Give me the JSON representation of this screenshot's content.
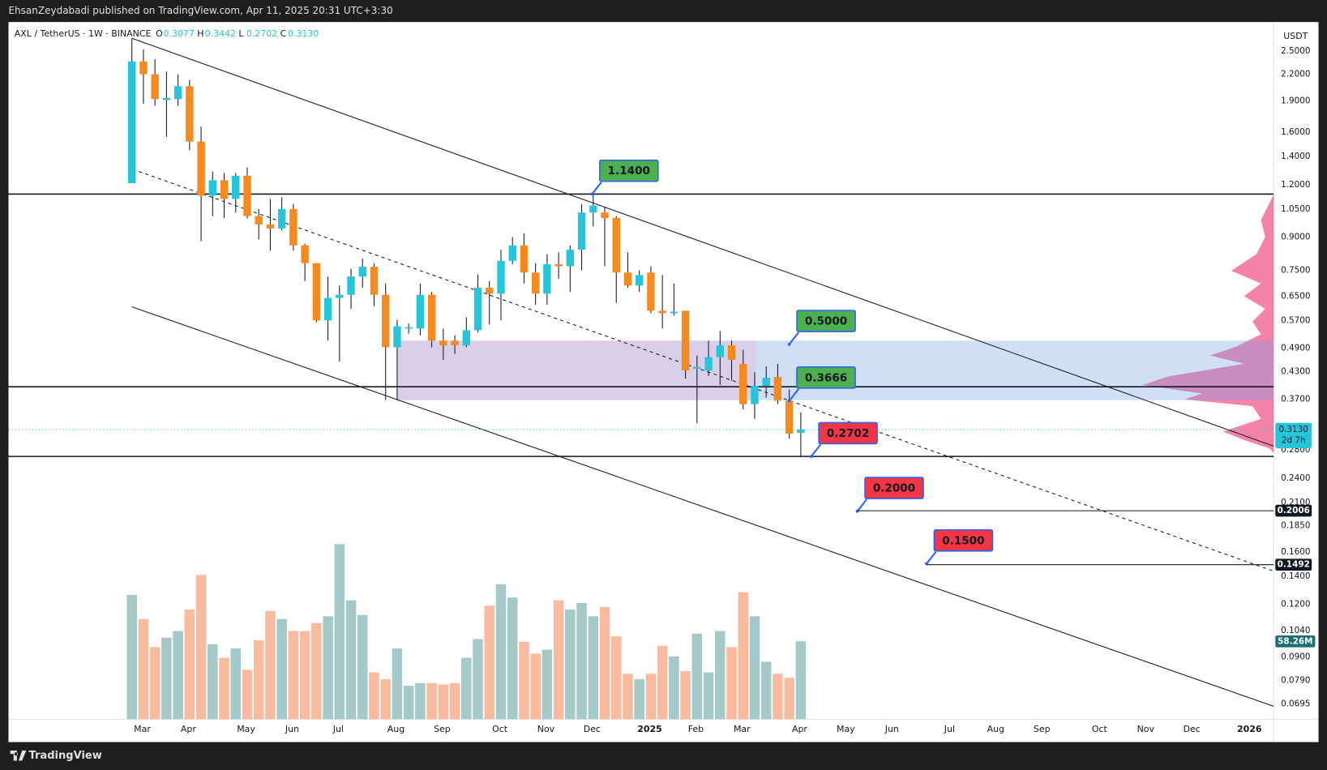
{
  "header": {
    "published": "EhsanZeydabadi published on TradingView.com, Apr 11, 2025 20:31 UTC+3:30",
    "brand": "TradingView"
  },
  "chart_data": {
    "type": "candlestick",
    "symbol": "AXL / TetherUS · 1W · BINANCE",
    "ohlc_legend": [
      {
        "key": "O",
        "label": "0.3077"
      },
      {
        "key": "H",
        "label": "0.3442"
      },
      {
        "key": "L",
        "label": "0.2702"
      },
      {
        "key": "C",
        "label": "0.3130"
      }
    ],
    "currency": "USDT",
    "log_scale": true,
    "xlim": [
      -10.7,
      99
    ],
    "xticks": [
      {
        "value": 0.9,
        "label": "Mar"
      },
      {
        "value": 4.9,
        "label": "Apr"
      },
      {
        "value": 9.9,
        "label": "May"
      },
      {
        "value": 13.9,
        "label": "Jun"
      },
      {
        "value": 17.9,
        "label": "Jul"
      },
      {
        "value": 22.9,
        "label": "Aug"
      },
      {
        "value": 26.9,
        "label": "Sep"
      },
      {
        "value": 31.9,
        "label": "Oct"
      },
      {
        "value": 35.9,
        "label": "Nov"
      },
      {
        "value": 39.9,
        "label": "Dec"
      },
      {
        "value": 44.9,
        "label": "2025"
      },
      {
        "value": 48.9,
        "label": "Feb"
      },
      {
        "value": 52.9,
        "label": "Mar"
      },
      {
        "value": 57.9,
        "label": "Apr"
      },
      {
        "value": 61.9,
        "label": "May"
      },
      {
        "value": 65.9,
        "label": "Jun"
      },
      {
        "value": 70.9,
        "label": "Jul"
      },
      {
        "value": 74.9,
        "label": "Aug"
      },
      {
        "value": 78.9,
        "label": "Sep"
      },
      {
        "value": 83.9,
        "label": "Oct"
      },
      {
        "value": 87.9,
        "label": "Nov"
      },
      {
        "value": 91.9,
        "label": "Dec"
      },
      {
        "value": 96.9,
        "label": "2026"
      }
    ],
    "ylim": [
      0.0639,
      2.93
    ],
    "yticks": [
      {
        "value": 2.5,
        "label": "2.5000"
      },
      {
        "value": 2.2,
        "label": "2.2000"
      },
      {
        "value": 1.9,
        "label": "1.9000"
      },
      {
        "value": 1.6,
        "label": "1.6000"
      },
      {
        "value": 1.4,
        "label": "1.4000"
      },
      {
        "value": 1.2,
        "label": "1.2000"
      },
      {
        "value": 1.05,
        "label": "1.0500"
      },
      {
        "value": 0.9,
        "label": "0.9000"
      },
      {
        "value": 0.75,
        "label": "0.7500"
      },
      {
        "value": 0.65,
        "label": "0.6500"
      },
      {
        "value": 0.57,
        "label": "0.5700"
      },
      {
        "value": 0.49,
        "label": "0.4900"
      },
      {
        "value": 0.43,
        "label": "0.4300"
      },
      {
        "value": 0.37,
        "label": "0.3700"
      },
      {
        "value": 0.28,
        "label": "0.2800"
      },
      {
        "value": 0.24,
        "label": "0.2400"
      },
      {
        "value": 0.21,
        "label": "0.2100"
      },
      {
        "value": 0.185,
        "label": "0.1850"
      },
      {
        "value": 0.16,
        "label": "0.1600"
      },
      {
        "value": 0.14,
        "label": "0.1400"
      },
      {
        "value": 0.12,
        "label": "0.1200"
      },
      {
        "value": 0.104,
        "label": "0.1040"
      },
      {
        "value": 0.09,
        "label": "0.0900"
      },
      {
        "value": 0.079,
        "label": "0.0790"
      },
      {
        "value": 0.0695,
        "label": "0.0695"
      }
    ],
    "open": [
      1.21,
      2.36,
      2.2,
      1.91,
      1.92,
      2.06,
      1.52,
      1.13,
      1.23,
      1.11,
      1.26,
      1.01,
      0.965,
      0.944,
      1.05,
      0.86,
      0.78,
      0.57,
      0.645,
      0.656,
      0.725,
      0.765,
      0.656,
      0.492,
      0.545,
      0.545,
      0.656,
      0.51,
      0.51,
      0.497,
      0.54,
      0.682,
      0.66,
      0.79,
      0.86,
      0.741,
      0.66,
      0.776,
      0.767,
      0.84,
      1.03,
      1.03,
      1.0,
      0.741,
      0.69,
      0.741,
      0.601,
      0.593,
      0.601,
      0.437,
      0.433,
      0.466,
      0.497,
      0.449,
      0.36,
      0.398,
      0.418,
      0.367,
      0.3077
    ],
    "high": [
      2.68,
      2.52,
      2.39,
      2.23,
      2.2,
      2.13,
      1.65,
      1.29,
      1.28,
      1.28,
      1.32,
      1.05,
      1.11,
      1.12,
      1.08,
      0.868,
      0.78,
      0.725,
      0.69,
      0.757,
      0.8,
      0.78,
      0.698,
      0.572,
      0.56,
      0.698,
      0.666,
      0.545,
      0.525,
      0.58,
      0.734,
      0.707,
      0.84,
      0.9,
      0.92,
      0.78,
      0.82,
      0.828,
      0.86,
      1.08,
      1.14,
      1.06,
      1.01,
      0.828,
      0.75,
      0.767,
      0.731,
      0.698,
      0.601,
      0.47,
      0.51,
      0.538,
      0.51,
      0.485,
      0.429,
      0.443,
      0.449,
      0.39,
      0.3442
    ],
    "low": [
      1.21,
      1.87,
      1.85,
      1.56,
      1.85,
      1.45,
      0.88,
      1.01,
      1.0,
      1.03,
      0.997,
      0.888,
      0.836,
      0.935,
      0.836,
      0.707,
      0.564,
      0.51,
      0.455,
      0.607,
      0.682,
      0.616,
      0.368,
      0.368,
      0.53,
      0.525,
      0.492,
      0.459,
      0.474,
      0.492,
      0.533,
      0.557,
      0.57,
      0.776,
      0.698,
      0.621,
      0.621,
      0.716,
      0.666,
      0.75,
      0.955,
      0.767,
      0.627,
      0.682,
      0.666,
      0.593,
      0.545,
      0.585,
      0.414,
      0.324,
      0.42,
      0.4,
      0.41,
      0.35,
      0.332,
      0.373,
      0.36,
      0.298,
      0.2702
    ],
    "close": [
      2.36,
      2.2,
      1.92,
      1.93,
      2.06,
      1.52,
      1.13,
      1.23,
      1.11,
      1.26,
      1.01,
      0.965,
      0.944,
      1.05,
      0.86,
      0.78,
      0.57,
      0.645,
      0.656,
      0.725,
      0.765,
      0.656,
      0.492,
      0.552,
      0.549,
      0.656,
      0.51,
      0.497,
      0.497,
      0.54,
      0.682,
      0.66,
      0.79,
      0.86,
      0.741,
      0.66,
      0.776,
      0.767,
      0.84,
      1.03,
      1.07,
      1.0,
      0.741,
      0.69,
      0.731,
      0.601,
      0.593,
      0.598,
      0.433,
      0.441,
      0.466,
      0.497,
      0.459,
      0.36,
      0.398,
      0.416,
      0.367,
      0.306,
      0.313
    ],
    "volume": [
      93,
      75,
      54,
      61,
      66,
      82,
      108,
      56,
      46,
      53,
      37,
      59,
      81,
      75,
      66,
      66,
      72,
      77,
      131,
      89,
      78,
      35,
      30,
      53,
      25,
      27,
      27,
      26,
      27,
      46,
      60,
      85,
      101,
      91,
      58,
      49,
      52,
      89,
      82,
      87,
      77,
      84,
      62,
      34,
      30,
      34,
      55,
      47,
      36,
      64,
      35,
      66,
      54,
      95,
      77,
      43,
      34,
      31,
      58.26
    ],
    "volume_label": "58.26M",
    "up_color": "#26c6da",
    "down_color": "#f68a1f",
    "volume_up_color": "#a5c8c9",
    "volume_down_color": "#f8bb9f",
    "price_label": {
      "value": 0.313,
      "label": "0.3130"
    },
    "countdown": "2d 7h",
    "hlines": [
      1.14,
      0.396,
      0.2702
    ],
    "trendlines": [
      {
        "x": [
          0,
          99
        ],
        "y": [
          2.68,
          0.286
        ],
        "dashed": false
      },
      {
        "x": [
          0,
          99
        ],
        "y": [
          0.614,
          0.0686
        ],
        "dashed": false
      },
      {
        "x": [
          0.6,
          99
        ],
        "y": [
          1.29,
          0.144
        ],
        "dashed": true
      }
    ],
    "zones": [
      {
        "x": [
          22.98,
          54.1
        ],
        "y": [
          0.368,
          0.51
        ],
        "color": "rgba(168,140,200,0.42)"
      },
      {
        "x": [
          54.1,
          99
        ],
        "y": [
          0.368,
          0.51
        ],
        "color": "rgba(120,160,230,0.35)"
      }
    ],
    "annotations": [
      {
        "x": 39.9,
        "value": 1.14,
        "label": "1.1400",
        "color": "#4caf50"
      },
      {
        "x": 57,
        "value": 0.5,
        "label": "0.5000",
        "color": "#4caf50"
      },
      {
        "x": 57,
        "value": 0.3666,
        "label": "0.3666",
        "color": "#4caf50"
      },
      {
        "x": 58.9,
        "value": 0.2702,
        "label": "0.2702",
        "color": "#f23645"
      },
      {
        "x": 62.9,
        "value": 0.2,
        "label": "0.2000",
        "color": "#f23645"
      },
      {
        "x": 68.9,
        "value": 0.15,
        "label": "0.1500",
        "color": "#f23645"
      }
    ],
    "rays": [
      {
        "x": 62.9,
        "value": 0.2006
      },
      {
        "x": 68.9,
        "value": 0.1492
      }
    ]
  }
}
